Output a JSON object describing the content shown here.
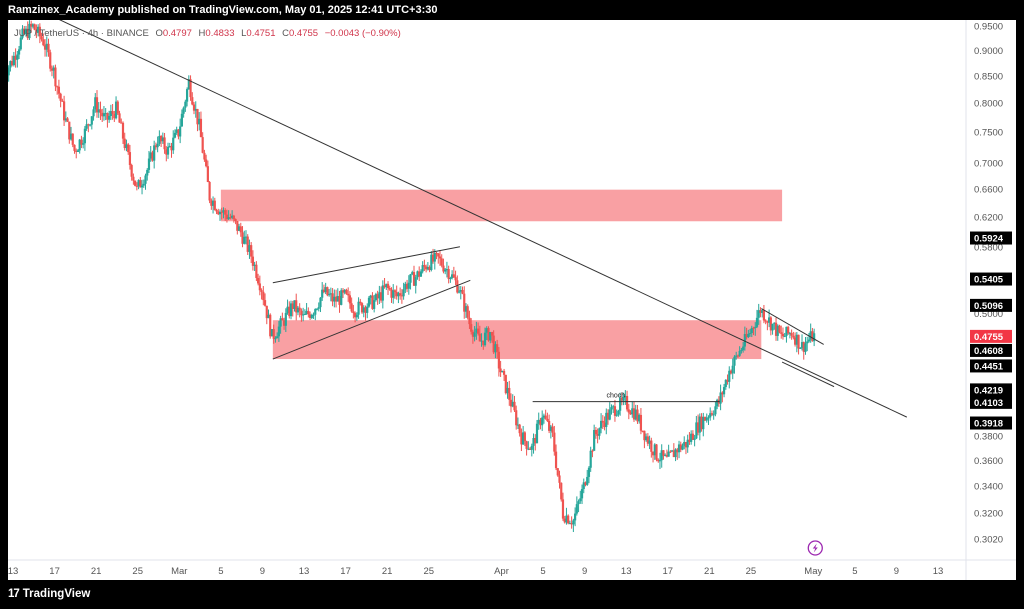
{
  "header": {
    "publisher_text": "Ramzinex_Academy published on TradingView.com, May 01, 2025 12:41 UTC+3:30"
  },
  "legend": {
    "symbol": "JUP / TetherUS · 4h · BINANCE",
    "open_label": "O",
    "open": "0.4797",
    "high_label": "H",
    "high": "0.4833",
    "low_label": "L",
    "low": "0.4751",
    "close_label": "C",
    "close": "0.4755",
    "change": "−0.0043 (−0.90%)"
  },
  "footer": {
    "brand": "TradingView",
    "logo_icon": "tradingview-logo-icon"
  },
  "colors": {
    "up": "#26a69a",
    "down": "#ef5350",
    "zone": "#f9a0a3",
    "line": "#333333",
    "last_price": "#f23645"
  },
  "chart_data": {
    "type": "candlestick",
    "symbol": "JUP/USDT",
    "timeframe": "4h",
    "y_axis": {
      "scale": "log",
      "range": [
        0.295,
        0.96
      ],
      "tick_labels": [
        "0.9500",
        "0.9000",
        "0.8500",
        "0.8000",
        "0.7500",
        "0.7000",
        "0.6600",
        "0.6200",
        "0.5800",
        "0.5400",
        "0.5000",
        "0.4600",
        "0.4200",
        "0.3800",
        "0.3600",
        "0.3400",
        "0.3200",
        "0.3020"
      ]
    },
    "price_tags": [
      {
        "label": "0.5924",
        "kind": "level"
      },
      {
        "label": "0.5405",
        "kind": "level"
      },
      {
        "label": "0.5096",
        "kind": "level"
      },
      {
        "label": "0.4755",
        "kind": "last"
      },
      {
        "label": "0.4608",
        "kind": "level"
      },
      {
        "label": "0.4451",
        "kind": "level"
      },
      {
        "label": "0.4219",
        "kind": "level"
      },
      {
        "label": "0.4103",
        "kind": "level"
      },
      {
        "label": "0.3918",
        "kind": "level"
      }
    ],
    "x_axis": {
      "tick_labels": [
        {
          "label": "13",
          "date": "2025-02-13"
        },
        {
          "label": "17",
          "date": "2025-02-17"
        },
        {
          "label": "21",
          "date": "2025-02-21"
        },
        {
          "label": "25",
          "date": "2025-02-25"
        },
        {
          "label": "Mar",
          "date": "2025-03-01"
        },
        {
          "label": "5",
          "date": "2025-03-05"
        },
        {
          "label": "9",
          "date": "2025-03-09"
        },
        {
          "label": "13",
          "date": "2025-03-13"
        },
        {
          "label": "17",
          "date": "2025-03-17"
        },
        {
          "label": "21",
          "date": "2025-03-21"
        },
        {
          "label": "25",
          "date": "2025-03-25"
        },
        {
          "label": "Apr",
          "date": "2025-04-01"
        },
        {
          "label": "5",
          "date": "2025-04-05"
        },
        {
          "label": "9",
          "date": "2025-04-09"
        },
        {
          "label": "13",
          "date": "2025-04-13"
        },
        {
          "label": "17",
          "date": "2025-04-17"
        },
        {
          "label": "21",
          "date": "2025-04-21"
        },
        {
          "label": "25",
          "date": "2025-04-25"
        },
        {
          "label": "May",
          "date": "2025-05-01"
        },
        {
          "label": "5",
          "date": "2025-05-05"
        },
        {
          "label": "9",
          "date": "2025-05-09"
        },
        {
          "label": "13",
          "date": "2025-05-13"
        }
      ]
    },
    "price_path": [
      [
        "2025-02-12",
        0.85
      ],
      [
        "2025-02-13",
        0.88
      ],
      [
        "2025-02-14",
        0.93
      ],
      [
        "2025-02-15",
        0.95
      ],
      [
        "2025-02-16",
        0.92
      ],
      [
        "2025-02-17",
        0.86
      ],
      [
        "2025-02-18",
        0.78
      ],
      [
        "2025-02-19",
        0.72
      ],
      [
        "2025-02-20",
        0.75
      ],
      [
        "2025-02-21",
        0.8
      ],
      [
        "2025-02-22",
        0.77
      ],
      [
        "2025-02-23",
        0.79
      ],
      [
        "2025-02-24",
        0.72
      ],
      [
        "2025-02-25",
        0.66
      ],
      [
        "2025-02-26",
        0.69
      ],
      [
        "2025-02-27",
        0.74
      ],
      [
        "2025-02-28",
        0.72
      ],
      [
        "2025-03-01",
        0.75
      ],
      [
        "2025-03-02",
        0.84
      ],
      [
        "2025-03-03",
        0.76
      ],
      [
        "2025-03-04",
        0.65
      ],
      [
        "2025-03-05",
        0.63
      ],
      [
        "2025-03-06",
        0.62
      ],
      [
        "2025-03-07",
        0.6
      ],
      [
        "2025-03-08",
        0.57
      ],
      [
        "2025-03-09",
        0.53
      ],
      [
        "2025-03-10",
        0.475
      ],
      [
        "2025-03-11",
        0.49
      ],
      [
        "2025-03-12",
        0.51
      ],
      [
        "2025-03-13",
        0.495
      ],
      [
        "2025-03-14",
        0.505
      ],
      [
        "2025-03-15",
        0.525
      ],
      [
        "2025-03-16",
        0.515
      ],
      [
        "2025-03-17",
        0.52
      ],
      [
        "2025-03-18",
        0.505
      ],
      [
        "2025-03-19",
        0.51
      ],
      [
        "2025-03-20",
        0.515
      ],
      [
        "2025-03-21",
        0.53
      ],
      [
        "2025-03-22",
        0.52
      ],
      [
        "2025-03-23",
        0.535
      ],
      [
        "2025-03-24",
        0.545
      ],
      [
        "2025-03-25",
        0.56
      ],
      [
        "2025-03-26",
        0.565
      ],
      [
        "2025-03-27",
        0.55
      ],
      [
        "2025-03-28",
        0.53
      ],
      [
        "2025-03-29",
        0.49
      ],
      [
        "2025-03-30",
        0.47
      ],
      [
        "2025-03-31",
        0.48
      ],
      [
        "2025-04-01",
        0.44
      ],
      [
        "2025-04-02",
        0.41
      ],
      [
        "2025-04-03",
        0.38
      ],
      [
        "2025-04-04",
        0.37
      ],
      [
        "2025-04-05",
        0.4
      ],
      [
        "2025-04-06",
        0.38
      ],
      [
        "2025-04-07",
        0.32
      ],
      [
        "2025-04-08",
        0.315
      ],
      [
        "2025-04-09",
        0.34
      ],
      [
        "2025-04-10",
        0.38
      ],
      [
        "2025-04-11",
        0.395
      ],
      [
        "2025-04-12",
        0.405
      ],
      [
        "2025-04-13",
        0.41
      ],
      [
        "2025-04-14",
        0.4
      ],
      [
        "2025-04-15",
        0.38
      ],
      [
        "2025-04-16",
        0.365
      ],
      [
        "2025-04-17",
        0.36
      ],
      [
        "2025-04-18",
        0.37
      ],
      [
        "2025-04-19",
        0.375
      ],
      [
        "2025-04-20",
        0.39
      ],
      [
        "2025-04-21",
        0.4
      ],
      [
        "2025-04-22",
        0.41
      ],
      [
        "2025-04-23",
        0.44
      ],
      [
        "2025-04-24",
        0.46
      ],
      [
        "2025-04-25",
        0.48
      ],
      [
        "2025-04-26",
        0.505
      ],
      [
        "2025-04-27",
        0.49
      ],
      [
        "2025-04-28",
        0.475
      ],
      [
        "2025-04-29",
        0.48
      ],
      [
        "2025-04-30",
        0.465
      ],
      [
        "2025-05-01",
        0.4755
      ]
    ],
    "zones": [
      {
        "from": "2025-03-05",
        "to": "2025-04-28",
        "top": 0.66,
        "bottom": 0.615
      },
      {
        "from": "2025-03-10",
        "to": "2025-04-26",
        "top": 0.493,
        "bottom": 0.452
      }
    ],
    "trendlines": [
      {
        "from": [
          "2025-02-17",
          0.97
        ],
        "to": [
          "2025-05-10",
          0.397
        ]
      },
      {
        "from": [
          "2025-03-10",
          0.536
        ],
        "to": [
          "2025-03-28",
          0.581
        ]
      },
      {
        "from": [
          "2025-03-10",
          0.452
        ],
        "to": [
          "2025-03-29",
          0.539
        ]
      },
      {
        "from": [
          "2025-04-04",
          0.411
        ],
        "to": [
          "2025-04-22",
          0.411
        ]
      },
      {
        "from": [
          "2025-04-26",
          0.506
        ],
        "to": [
          "2025-05-02",
          0.467
        ]
      },
      {
        "from": [
          "2025-04-28",
          0.449
        ],
        "to": [
          "2025-05-03",
          0.425
        ]
      }
    ],
    "annotations": [
      {
        "text": "choch",
        "date": "2025-04-12",
        "price": 0.413
      }
    ],
    "flash_icon": "lightning-icon"
  }
}
